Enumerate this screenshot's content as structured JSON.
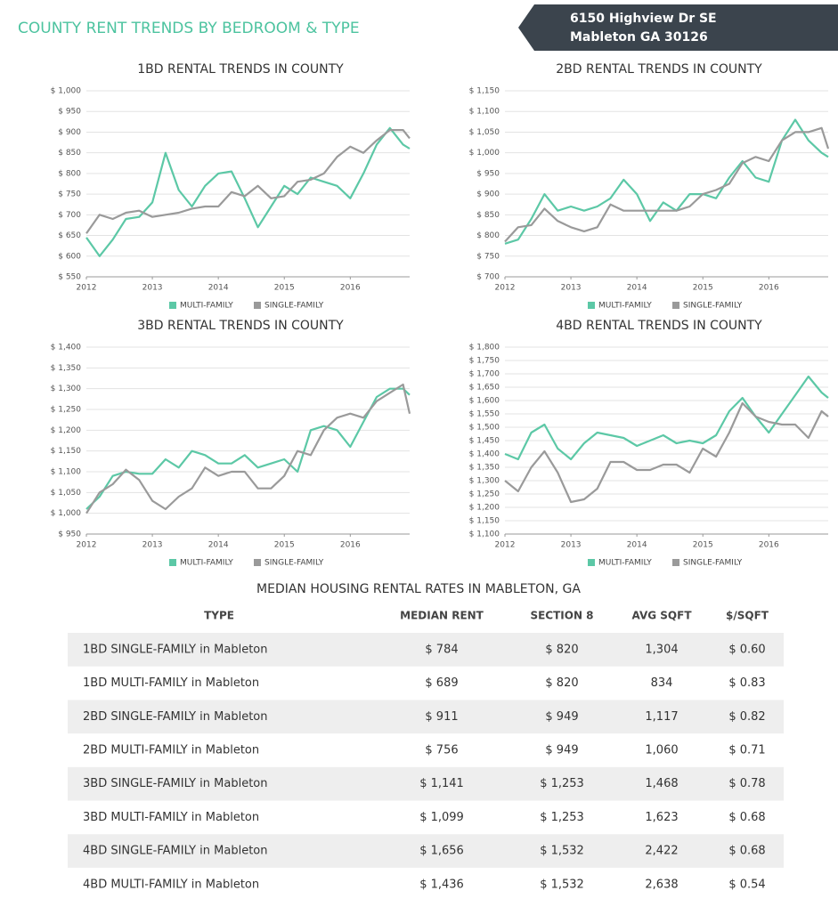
{
  "header": {
    "title": "COUNTY RENT TRENDS BY BEDROOM & TYPE",
    "address_line1": "6150 Highview Dr SE",
    "address_line2": "Mableton GA 30126"
  },
  "chart_data": [
    {
      "type": "line",
      "title": "1BD RENTAL TRENDS IN COUNTY",
      "x": [
        2012,
        2012.2,
        2012.4,
        2012.6,
        2012.8,
        2013,
        2013.2,
        2013.4,
        2013.6,
        2013.8,
        2014,
        2014.2,
        2014.4,
        2014.6,
        2014.8,
        2015,
        2015.2,
        2015.4,
        2015.6,
        2015.8,
        2016,
        2016.2,
        2016.4,
        2016.6,
        2016.8,
        2016.9
      ],
      "series": [
        {
          "name": "MULTI-FAMILY",
          "color": "#5cc8a6",
          "values": [
            645,
            600,
            640,
            690,
            695,
            730,
            850,
            760,
            720,
            770,
            800,
            805,
            740,
            670,
            720,
            770,
            750,
            790,
            780,
            770,
            740,
            800,
            870,
            910,
            870,
            860
          ]
        },
        {
          "name": "SINGLE-FAMILY",
          "color": "#9a9a9a",
          "values": [
            655,
            700,
            690,
            705,
            710,
            695,
            700,
            705,
            715,
            720,
            720,
            755,
            745,
            770,
            740,
            745,
            780,
            785,
            800,
            840,
            865,
            850,
            880,
            905,
            905,
            885
          ]
        }
      ],
      "xlim": [
        2012,
        2016.9
      ],
      "xticks": [
        2012,
        2013,
        2014,
        2015,
        2016
      ],
      "ylim": [
        550,
        1000
      ],
      "yticks": [
        {
          "value": 550,
          "label": "$ 550"
        },
        {
          "value": 600,
          "label": "$ 600"
        },
        {
          "value": 650,
          "label": "$ 650"
        },
        {
          "value": 700,
          "label": "$ 700"
        },
        {
          "value": 750,
          "label": "$ 750"
        },
        {
          "value": 800,
          "label": "$ 800"
        },
        {
          "value": 850,
          "label": "$ 850"
        },
        {
          "value": 900,
          "label": "$ 900"
        },
        {
          "value": 950,
          "label": "$ 950"
        },
        {
          "value": 1000,
          "label": "$ 1,000"
        }
      ],
      "grid": true
    },
    {
      "type": "line",
      "title": "2BD RENTAL TRENDS IN COUNTY",
      "x": [
        2012,
        2012.2,
        2012.4,
        2012.6,
        2012.8,
        2013,
        2013.2,
        2013.4,
        2013.6,
        2013.8,
        2014,
        2014.2,
        2014.4,
        2014.6,
        2014.8,
        2015,
        2015.2,
        2015.4,
        2015.6,
        2015.8,
        2016,
        2016.2,
        2016.4,
        2016.6,
        2016.8,
        2016.9
      ],
      "series": [
        {
          "name": "MULTI-FAMILY",
          "color": "#5cc8a6",
          "values": [
            780,
            790,
            840,
            900,
            860,
            870,
            860,
            870,
            890,
            935,
            900,
            835,
            880,
            860,
            900,
            900,
            890,
            940,
            980,
            940,
            930,
            1030,
            1080,
            1030,
            1000,
            990
          ]
        },
        {
          "name": "SINGLE-FAMILY",
          "color": "#9a9a9a",
          "values": [
            785,
            820,
            825,
            865,
            835,
            820,
            810,
            820,
            875,
            860,
            860,
            860,
            860,
            860,
            870,
            900,
            910,
            925,
            975,
            990,
            980,
            1030,
            1050,
            1050,
            1060,
            1010
          ]
        }
      ],
      "xlim": [
        2012,
        2016.9
      ],
      "xticks": [
        2012,
        2013,
        2014,
        2015,
        2016
      ],
      "ylim": [
        700,
        1150
      ],
      "yticks": [
        {
          "value": 700,
          "label": "$ 700"
        },
        {
          "value": 750,
          "label": "$ 750"
        },
        {
          "value": 800,
          "label": "$ 800"
        },
        {
          "value": 850,
          "label": "$ 850"
        },
        {
          "value": 900,
          "label": "$ 900"
        },
        {
          "value": 950,
          "label": "$ 950"
        },
        {
          "value": 1000,
          "label": "$ 1,000"
        },
        {
          "value": 1050,
          "label": "$ 1,050"
        },
        {
          "value": 1100,
          "label": "$ 1,100"
        },
        {
          "value": 1150,
          "label": "$ 1,150"
        }
      ],
      "grid": true
    },
    {
      "type": "line",
      "title": "3BD RENTAL TRENDS IN COUNTY",
      "x": [
        2012,
        2012.2,
        2012.4,
        2012.6,
        2012.8,
        2013,
        2013.2,
        2013.4,
        2013.6,
        2013.8,
        2014,
        2014.2,
        2014.4,
        2014.6,
        2014.8,
        2015,
        2015.2,
        2015.4,
        2015.6,
        2015.8,
        2016,
        2016.2,
        2016.4,
        2016.6,
        2016.8,
        2016.9
      ],
      "series": [
        {
          "name": "MULTI-FAMILY",
          "color": "#5cc8a6",
          "values": [
            1010,
            1040,
            1090,
            1100,
            1095,
            1095,
            1130,
            1110,
            1150,
            1140,
            1120,
            1120,
            1140,
            1110,
            1120,
            1130,
            1100,
            1200,
            1210,
            1200,
            1160,
            1220,
            1280,
            1300,
            1300,
            1285
          ]
        },
        {
          "name": "SINGLE-FAMILY",
          "color": "#9a9a9a",
          "values": [
            1000,
            1050,
            1070,
            1105,
            1080,
            1030,
            1010,
            1040,
            1060,
            1110,
            1090,
            1100,
            1100,
            1060,
            1060,
            1090,
            1150,
            1140,
            1200,
            1230,
            1240,
            1230,
            1270,
            1290,
            1310,
            1240
          ]
        }
      ],
      "xlim": [
        2012,
        2016.9
      ],
      "xticks": [
        2012,
        2013,
        2014,
        2015,
        2016
      ],
      "ylim": [
        950,
        1400
      ],
      "yticks": [
        {
          "value": 950,
          "label": "$ 950"
        },
        {
          "value": 1000,
          "label": "$ 1,000"
        },
        {
          "value": 1050,
          "label": "$ 1,050"
        },
        {
          "value": 1100,
          "label": "$ 1,100"
        },
        {
          "value": 1150,
          "label": "$ 1,150"
        },
        {
          "value": 1200,
          "label": "$ 1,200"
        },
        {
          "value": 1250,
          "label": "$ 1,250"
        },
        {
          "value": 1300,
          "label": "$ 1,300"
        },
        {
          "value": 1350,
          "label": "$ 1,350"
        },
        {
          "value": 1400,
          "label": "$ 1,400"
        }
      ],
      "grid": true
    },
    {
      "type": "line",
      "title": "4BD RENTAL TRENDS IN COUNTY",
      "x": [
        2012,
        2012.2,
        2012.4,
        2012.6,
        2012.8,
        2013,
        2013.2,
        2013.4,
        2013.6,
        2013.8,
        2014,
        2014.2,
        2014.4,
        2014.6,
        2014.8,
        2015,
        2015.2,
        2015.4,
        2015.6,
        2015.8,
        2016,
        2016.2,
        2016.4,
        2016.6,
        2016.8,
        2016.9
      ],
      "series": [
        {
          "name": "MULTI-FAMILY",
          "color": "#5cc8a6",
          "values": [
            1400,
            1380,
            1480,
            1510,
            1420,
            1380,
            1440,
            1480,
            1470,
            1460,
            1430,
            1450,
            1470,
            1440,
            1450,
            1440,
            1470,
            1560,
            1610,
            1540,
            1480,
            1550,
            1620,
            1690,
            1630,
            1610
          ]
        },
        {
          "name": "SINGLE-FAMILY",
          "color": "#9a9a9a",
          "values": [
            1300,
            1260,
            1350,
            1410,
            1330,
            1220,
            1230,
            1270,
            1370,
            1370,
            1340,
            1340,
            1360,
            1360,
            1330,
            1420,
            1390,
            1480,
            1590,
            1540,
            1520,
            1510,
            1510,
            1460,
            1560,
            1540
          ]
        }
      ],
      "xlim": [
        2012,
        2016.9
      ],
      "xticks": [
        2012,
        2013,
        2014,
        2015,
        2016
      ],
      "ylim": [
        1100,
        1800
      ],
      "yticks": [
        {
          "value": 1100,
          "label": "$ 1,100"
        },
        {
          "value": 1150,
          "label": "$ 1,150"
        },
        {
          "value": 1200,
          "label": "$ 1,200"
        },
        {
          "value": 1250,
          "label": "$ 1,250"
        },
        {
          "value": 1300,
          "label": "$ 1,300"
        },
        {
          "value": 1350,
          "label": "$ 1,350"
        },
        {
          "value": 1400,
          "label": "$ 1,400"
        },
        {
          "value": 1450,
          "label": "$ 1,450"
        },
        {
          "value": 1500,
          "label": "$ 1,500"
        },
        {
          "value": 1550,
          "label": "$ 1,550"
        },
        {
          "value": 1600,
          "label": "$ 1,600"
        },
        {
          "value": 1650,
          "label": "$ 1,650"
        },
        {
          "value": 1700,
          "label": "$ 1,700"
        },
        {
          "value": 1750,
          "label": "$ 1,750"
        },
        {
          "value": 1800,
          "label": "$ 1,800"
        }
      ],
      "grid": true
    }
  ],
  "table": {
    "title": "MEDIAN HOUSING RENTAL RATES IN MABLETON, GA",
    "columns": [
      "TYPE",
      "MEDIAN RENT",
      "SECTION 8",
      "AVG SQFT",
      "$/SQFT"
    ],
    "rows": [
      [
        "1BD SINGLE-FAMILY in Mableton",
        "$ 784",
        "$ 820",
        "1,304",
        "$ 0.60"
      ],
      [
        "1BD MULTI-FAMILY in Mableton",
        "$ 689",
        "$ 820",
        "834",
        "$ 0.83"
      ],
      [
        "2BD SINGLE-FAMILY in Mableton",
        "$ 911",
        "$ 949",
        "1,117",
        "$ 0.82"
      ],
      [
        "2BD MULTI-FAMILY in Mableton",
        "$ 756",
        "$ 949",
        "1,060",
        "$ 0.71"
      ],
      [
        "3BD SINGLE-FAMILY in Mableton",
        "$ 1,141",
        "$ 1,253",
        "1,468",
        "$ 0.78"
      ],
      [
        "3BD MULTI-FAMILY in Mableton",
        "$ 1,099",
        "$ 1,253",
        "1,623",
        "$ 0.68"
      ],
      [
        "4BD SINGLE-FAMILY in Mableton",
        "$ 1,656",
        "$ 1,532",
        "2,422",
        "$ 0.68"
      ],
      [
        "4BD MULTI-FAMILY in Mableton",
        "$ 1,436",
        "$ 1,532",
        "2,638",
        "$ 0.54"
      ]
    ]
  }
}
